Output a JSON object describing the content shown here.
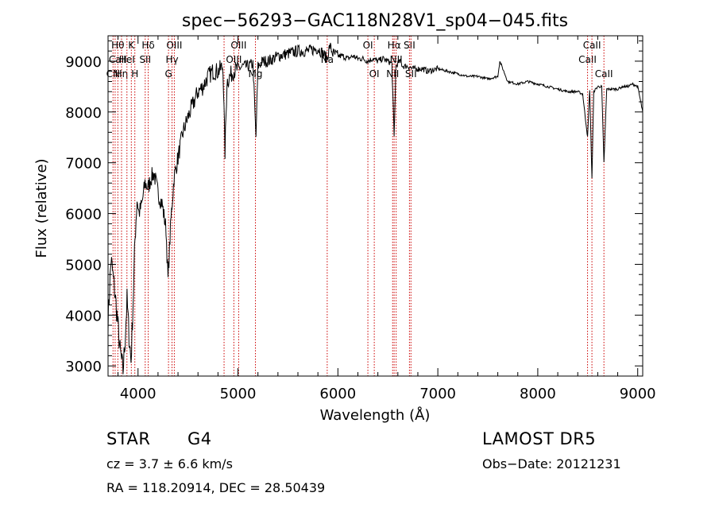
{
  "chart_data": {
    "type": "line",
    "title": "spec−56293−GAC118N28V1_sp04−045.fits",
    "xlabel": "Wavelength (Å)",
    "ylabel": "Flux (relative)",
    "xlim": [
      3700,
      9050
    ],
    "ylim": [
      2800,
      9500
    ],
    "xticks": [
      4000,
      5000,
      6000,
      7000,
      8000,
      9000
    ],
    "yticks": [
      3000,
      4000,
      5000,
      6000,
      7000,
      8000,
      9000
    ],
    "grid": false,
    "series": [
      {
        "x": [
          3700,
          3730,
          3760,
          3790,
          3820,
          3850,
          3870,
          3890,
          3910,
          3930,
          3950,
          3970,
          3990,
          4010,
          4040,
          4070,
          4100,
          4130,
          4160,
          4200,
          4240,
          4280,
          4300,
          4330,
          4360,
          4400,
          4450,
          4500,
          4550,
          4600,
          4650,
          4700,
          4750,
          4800,
          4850,
          4870,
          4890,
          4920,
          4950,
          5000,
          5050,
          5100,
          5150,
          5180,
          5200,
          5250,
          5300,
          5400,
          5500,
          5600,
          5700,
          5800,
          5850,
          5890,
          5920,
          5950,
          6000,
          6050,
          6100,
          6150,
          6200,
          6250,
          6300,
          6350,
          6400,
          6450,
          6500,
          6540,
          6563,
          6580,
          6620,
          6650,
          6700,
          6750,
          6800,
          6850,
          6900,
          7000,
          7100,
          7200,
          7300,
          7400,
          7500,
          7600,
          7620,
          7700,
          7800,
          7900,
          8000,
          8100,
          8200,
          8300,
          8400,
          8450,
          8498,
          8520,
          8542,
          8560,
          8600,
          8640,
          8662,
          8690,
          8720,
          8760,
          8800,
          8850,
          8900,
          8950,
          9000,
          9050
        ],
        "y": [
          3900,
          5100,
          4600,
          4000,
          3300,
          2900,
          3500,
          4300,
          3600,
          3100,
          4200,
          5500,
          6300,
          6000,
          6200,
          6600,
          6500,
          6700,
          6800,
          6400,
          6200,
          5700,
          4700,
          5900,
          6700,
          7100,
          7600,
          7900,
          8150,
          8400,
          8500,
          8700,
          8800,
          8800,
          8900,
          7200,
          8600,
          8700,
          8800,
          8850,
          8900,
          8900,
          8950,
          7500,
          8900,
          9000,
          9000,
          9100,
          9150,
          9200,
          9200,
          9250,
          9150,
          9050,
          9300,
          9150,
          9100,
          9100,
          9050,
          9100,
          9050,
          9050,
          9000,
          9050,
          9000,
          9050,
          9000,
          8950,
          7500,
          8900,
          9000,
          8900,
          8900,
          8850,
          8850,
          8850,
          8800,
          8850,
          8800,
          8750,
          8700,
          8700,
          8650,
          8700,
          9000,
          8600,
          8550,
          8600,
          8550,
          8500,
          8450,
          8400,
          8400,
          8350,
          7500,
          8450,
          6700,
          8400,
          8500,
          8500,
          7000,
          8450,
          8450,
          8450,
          8450,
          8500,
          8500,
          8550,
          8500,
          8000
        ]
      }
    ],
    "lines": [
      {
        "x": 3750,
        "labels": [
          {
            "text": "CN",
            "row": 2
          }
        ]
      },
      {
        "x": 3771,
        "labels": []
      },
      {
        "x": 3798,
        "labels": [
          {
            "text": "Hθ",
            "row": 0
          },
          {
            "text": "CaII",
            "row": 1
          }
        ]
      },
      {
        "x": 3835,
        "labels": [
          {
            "text": "Hη",
            "row": 2
          }
        ]
      },
      {
        "x": 3889,
        "labels": [
          {
            "text": "HeI",
            "row": 1
          }
        ]
      },
      {
        "x": 3933,
        "labels": [
          {
            "text": "K",
            "row": 0
          }
        ]
      },
      {
        "x": 3968,
        "labels": [
          {
            "text": "H",
            "row": 2
          }
        ]
      },
      {
        "x": 4072,
        "labels": [
          {
            "text": "SII",
            "row": 1
          }
        ]
      },
      {
        "x": 4102,
        "labels": [
          {
            "text": "Hδ",
            "row": 0
          }
        ]
      },
      {
        "x": 4305,
        "labels": [
          {
            "text": "G",
            "row": 2
          }
        ]
      },
      {
        "x": 4340,
        "labels": [
          {
            "text": "Hγ",
            "row": 1
          }
        ]
      },
      {
        "x": 4363,
        "labels": [
          {
            "text": "OIII",
            "row": 0
          }
        ]
      },
      {
        "x": 4861,
        "labels": []
      },
      {
        "x": 4959,
        "labels": [
          {
            "text": "OIII",
            "row": 1
          }
        ]
      },
      {
        "x": 5007,
        "labels": [
          {
            "text": "OIII",
            "row": 0
          }
        ]
      },
      {
        "x": 5175,
        "labels": [
          {
            "text": "Mg",
            "row": 2
          }
        ]
      },
      {
        "x": 5893,
        "labels": [
          {
            "text": "Na",
            "row": 1
          }
        ]
      },
      {
        "x": 6300,
        "labels": [
          {
            "text": "OI",
            "row": 0
          }
        ]
      },
      {
        "x": 6364,
        "labels": [
          {
            "text": "OI",
            "row": 2
          }
        ]
      },
      {
        "x": 6548,
        "labels": [
          {
            "text": "NII",
            "row": 2
          }
        ]
      },
      {
        "x": 6563,
        "labels": [
          {
            "text": "Hα",
            "row": 0
          }
        ]
      },
      {
        "x": 6583,
        "labels": [
          {
            "text": "NII",
            "row": 1
          }
        ]
      },
      {
        "x": 6716,
        "labels": [
          {
            "text": "SII",
            "row": 0
          }
        ]
      },
      {
        "x": 6731,
        "labels": [
          {
            "text": "SII",
            "row": 2
          }
        ]
      },
      {
        "x": 8498,
        "labels": [
          {
            "text": "CaII",
            "row": 1
          }
        ]
      },
      {
        "x": 8542,
        "labels": [
          {
            "text": "CaII",
            "row": 0
          }
        ]
      },
      {
        "x": 8662,
        "labels": [
          {
            "text": "CaII",
            "row": 2
          }
        ]
      }
    ],
    "line_color": "#cc0000",
    "series_color": "#000000"
  },
  "info": {
    "class_label": "STAR",
    "subclass": "G4",
    "redshift": "cz = 3.7 ± 6.6 km/s",
    "coords": "RA = 118.20914, DEC =  28.50439",
    "survey": "LAMOST DR5",
    "obs_date": "Obs−Date: 20121231"
  }
}
